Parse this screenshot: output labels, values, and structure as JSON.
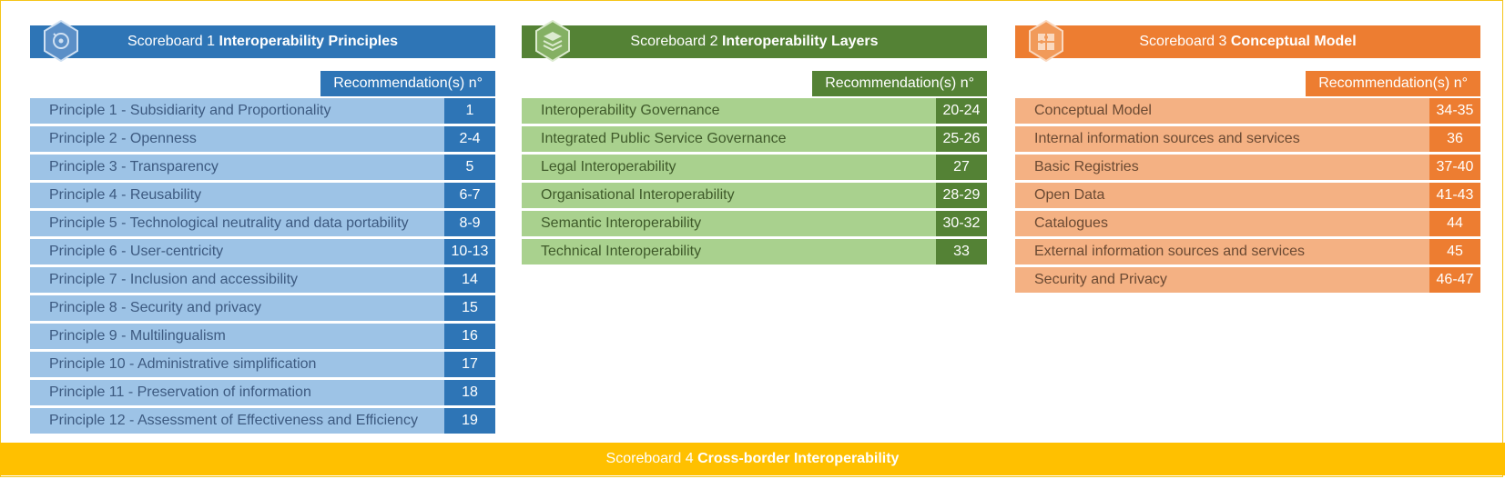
{
  "colors": {
    "board1_dark": "#2e75b6",
    "board1_light": "#9dc3e6",
    "board2_dark": "#548235",
    "board2_light": "#a9d18e",
    "board3_dark": "#ed7d31",
    "board3_light": "#f4b183",
    "footer": "#ffc000"
  },
  "board1": {
    "icon": "principles-hex-icon",
    "title_prefix": "Scoreboard 1",
    "title_bold": "Interoperability  Principles",
    "rec_label": "Recommendation(s)  n°",
    "rows": [
      {
        "label": "Principle 1 - Subsidiarity and Proportionality",
        "num": "1"
      },
      {
        "label": "Principle 2 - Openness",
        "num": "2-4"
      },
      {
        "label": "Principle 3 - Transparency",
        "num": "5"
      },
      {
        "label": "Principle 4 - Reusability",
        "num": "6-7"
      },
      {
        "label": "Principle 5 - Technological neutrality and data portability",
        "num": "8-9"
      },
      {
        "label": "Principle 6 - User-centricity",
        "num": "10-13"
      },
      {
        "label": "Principle 7 - Inclusion and accessibility",
        "num": "14"
      },
      {
        "label": "Principle 8 - Security and privacy",
        "num": "15"
      },
      {
        "label": "Principle 9 - Multilingualism",
        "num": "16"
      },
      {
        "label": "Principle 10 - Administrative  simplification",
        "num": "17"
      },
      {
        "label": "Principle 11 - Preservation  of information",
        "num": "18"
      },
      {
        "label": "Principle 12 - Assessment  of Effectiveness and Efficiency",
        "num": "19"
      }
    ]
  },
  "board2": {
    "icon": "layers-hex-icon",
    "title_prefix": "Scoreboard 2",
    "title_bold": "Interoperability  Layers",
    "rec_label": "Recommendation(s)  n°",
    "rows": [
      {
        "label": "Interoperability  Governance",
        "num": "20-24"
      },
      {
        "label": "Integrated  Public Service Governance",
        "num": "25-26"
      },
      {
        "label": "Legal  Interoperability",
        "num": "27"
      },
      {
        "label": "Organisational  Interoperability",
        "num": "28-29"
      },
      {
        "label": "Semantic  Interoperability",
        "num": "30-32"
      },
      {
        "label": "Technical  Interoperability",
        "num": "33"
      }
    ]
  },
  "board3": {
    "icon": "puzzle-hex-icon",
    "title_prefix": "Scoreboard 3",
    "title_bold": "Conceptual Model",
    "rec_label": "Recommendation(s)  n°",
    "rows": [
      {
        "label": "Conceptual  Model",
        "num": "34-35"
      },
      {
        "label": "Internal  information sources and services",
        "num": "36"
      },
      {
        "label": "Basic Registries",
        "num": "37-40"
      },
      {
        "label": "Open  Data",
        "num": "41-43"
      },
      {
        "label": "Catalogues",
        "num": "44"
      },
      {
        "label": "External  information sources and services",
        "num": "45"
      },
      {
        "label": "Security and Privacy",
        "num": "46-47"
      }
    ]
  },
  "footer": {
    "title_prefix": "Scoreboard 4",
    "title_bold": "Cross-border Interoperability"
  }
}
